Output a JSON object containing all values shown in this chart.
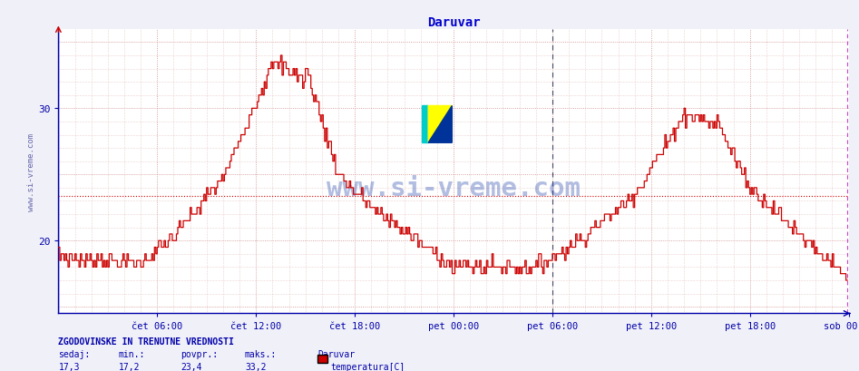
{
  "title": "Daruvar",
  "title_color": "#0000cc",
  "bg_color": "#f0f0f8",
  "plot_bg_color": "#ffffff",
  "line_color": "#cc0000",
  "avg_line_color": "#cc0000",
  "avg_value": 23.4,
  "ylim": [
    14.5,
    36
  ],
  "x_labels": [
    "čet 06:00",
    "čet 12:00",
    "čet 18:00",
    "pet 00:00",
    "pet 06:00",
    "pet 12:00",
    "pet 18:00",
    "sob 00:00"
  ],
  "vline_color": "#cc44cc",
  "vline_dark_color": "#444466",
  "grid_color_major_h": "#cc8888",
  "grid_color_minor_h": "#ddaaaa",
  "grid_color_major_v": "#cc8888",
  "grid_color_minor_v": "#ddaaaa",
  "stats_title": "ZGODOVINSKE IN TRENUTNE VREDNOSTI",
  "stats_labels": [
    "sedaj:",
    "min.:",
    "povpr.:",
    "maks.:"
  ],
  "stats_values": [
    "17,3",
    "17,2",
    "23,4",
    "33,2"
  ],
  "legend_label": "temperatura[C]",
  "legend_color": "#cc0000",
  "station_name": "Daruvar",
  "watermark": "www.si-vreme.com",
  "ylabel_text": "www.si-vreme.com"
}
